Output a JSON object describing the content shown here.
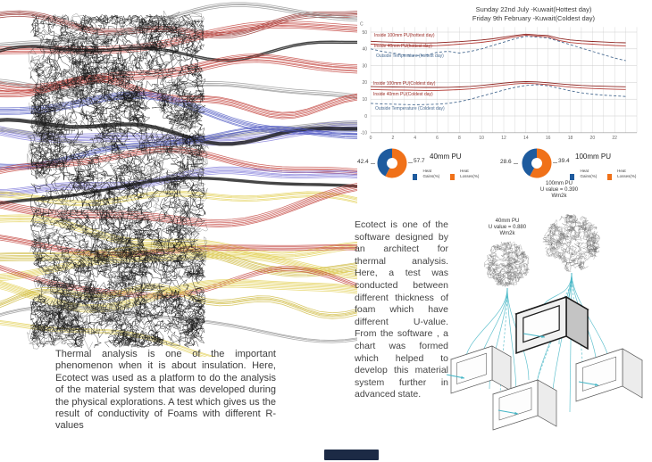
{
  "page": {
    "background": "#ffffff"
  },
  "left_section": {
    "caption": "Thermal analysis is one of the important phenomenon when it is about insulation. Here, Ecotect was used as a platform to do the analysis of the material system that was developed during the physical explorations. A test which gives us the result of conductivity of Foams with different R-values"
  },
  "right_section": {
    "paragraph": "Ecotect is one of the software designed by an architect for thermal analysis. Here, a test was conducted between different thickness of foam which have different U-value. From the software , a chart was formed which helped to develop this material system further in advanced state."
  },
  "chart_data": [
    {
      "type": "line",
      "titles": [
        "Sunday 22nd July -Kuwait(Hottest day)",
        "Friday 9th February -Kuwait(Coldest day)"
      ],
      "ylabel": "C",
      "xlabel": "",
      "x": [
        0,
        1,
        2,
        3,
        4,
        5,
        6,
        7,
        8,
        9,
        10,
        11,
        12,
        13,
        14,
        15,
        16,
        17,
        18,
        19,
        20,
        21,
        22,
        23
      ],
      "xticks": [
        0,
        2,
        4,
        6,
        8,
        10,
        12,
        14,
        16,
        18,
        20,
        22
      ],
      "yticks": [
        50,
        40,
        30,
        20,
        10,
        0,
        -10
      ],
      "ylim": [
        -13,
        55
      ],
      "grid": true,
      "legend_position": "inline-left",
      "series": [
        {
          "name": "Inside 100mm PU(hottest day)",
          "color": "#8e2420",
          "dash": false,
          "values": [
            44.5,
            44.2,
            44.0,
            43.8,
            43.6,
            43.5,
            43.6,
            44.0,
            44.3,
            44.8,
            45.3,
            46.0,
            47.0,
            48.0,
            48.8,
            48.3,
            48.0,
            46.2,
            45.3,
            44.8,
            44.4,
            44.1,
            43.8,
            43.6
          ]
        },
        {
          "name": "Inside 40mm PU(hottest day)",
          "color": "#b5403a",
          "dash": false,
          "values": [
            42.8,
            42.5,
            42.2,
            42.0,
            41.8,
            41.7,
            41.9,
            42.3,
            42.8,
            43.3,
            43.9,
            44.8,
            46.0,
            47.2,
            48.2,
            47.6,
            47.2,
            45.0,
            43.8,
            43.2,
            42.8,
            42.4,
            42.0,
            41.8
          ]
        },
        {
          "name": "Outside Temperature (hottest day)",
          "color": "#4a6c92",
          "dash": true,
          "values": [
            40.0,
            38.5,
            37.5,
            36.5,
            36.0,
            36.2,
            38.0,
            38.5,
            37.5,
            38.5,
            40.0,
            42.0,
            44.0,
            46.0,
            47.5,
            47.0,
            46.5,
            44.5,
            42.5,
            40.5,
            38.5,
            36.5,
            34.5,
            33.0
          ]
        },
        {
          "name": "Inside 100mm PU(Coldest day)",
          "color": "#8e2420",
          "dash": false,
          "values": [
            17.5,
            17.4,
            17.3,
            17.2,
            17.1,
            17.0,
            17.0,
            17.1,
            17.3,
            17.6,
            18.2,
            18.9,
            19.6,
            20.2,
            20.5,
            20.3,
            19.8,
            19.2,
            18.6,
            18.2,
            17.9,
            17.7,
            17.5,
            17.4
          ]
        },
        {
          "name": "Inside 40mm PU(Coldest day)",
          "color": "#b5403a",
          "dash": false,
          "values": [
            15.8,
            15.6,
            15.5,
            15.4,
            15.3,
            15.2,
            15.2,
            15.4,
            15.7,
            16.1,
            16.8,
            17.6,
            18.4,
            19.1,
            19.5,
            19.2,
            18.6,
            17.9,
            17.2,
            16.7,
            16.4,
            16.1,
            15.9,
            15.8
          ]
        },
        {
          "name": "Outside Temperature (Coldest day)",
          "color": "#4a6c92",
          "dash": true,
          "values": [
            7.5,
            7.2,
            7.0,
            6.8,
            6.7,
            6.8,
            7.0,
            7.5,
            8.5,
            10.0,
            11.8,
            13.6,
            15.4,
            17.0,
            18.2,
            18.6,
            18.0,
            16.5,
            15.0,
            13.8,
            13.0,
            12.4,
            12.0,
            11.6
          ]
        }
      ]
    },
    {
      "type": "pie",
      "title": "40mm PU",
      "slices": [
        {
          "label": "Heat Gains(%)",
          "label_lines": [
            "Heat",
            "Gains(%)"
          ],
          "value": 42.4,
          "color": "#1e5b9e"
        },
        {
          "label": "Heat Losses(%)",
          "label_lines": [
            "Heat",
            "Losses(%)"
          ],
          "value": 57.7,
          "color": "#f07119"
        }
      ]
    },
    {
      "type": "pie",
      "title": "100mm PU",
      "slices": [
        {
          "label": "Heat Gains(%)",
          "label_lines": [
            "Heat",
            "Gains(%)"
          ],
          "value": 28.6,
          "color": "#1e5b9e"
        },
        {
          "label": "Heat Losses(%)",
          "label_lines": [
            "Heat",
            "Losses(%)"
          ],
          "value": 39.4,
          "color": "#f07119"
        }
      ]
    }
  ],
  "diagram": {
    "accent_color": "#45b6c6",
    "labels": [
      {
        "lines": [
          "40mm PU",
          "U value = 0.880",
          "Wm2k"
        ]
      },
      {
        "lines": [
          "100mm PU",
          "U value = 0.390",
          "Wm2k"
        ]
      }
    ]
  },
  "art": {
    "colors": {
      "red": "#c2403a",
      "dark_red": "#8e2420",
      "grey": "#8f8f8f",
      "black": "#1a1a1a",
      "blue": "#4d57c2",
      "violet": "#7a74d8",
      "yellow": "#e2cf52",
      "gold": "#cdb83a"
    },
    "scribble_color": "#161616"
  },
  "footer_badge": {
    "color": "#1c2a45"
  }
}
